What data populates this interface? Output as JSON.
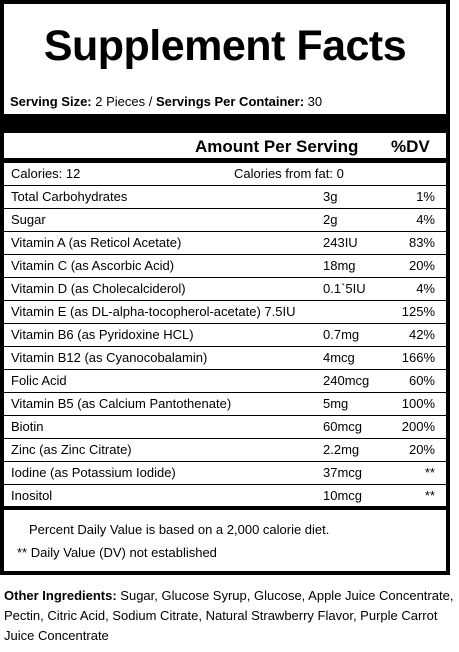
{
  "title": "Supplement Facts",
  "serving": {
    "size_label": "Serving Size:",
    "size_value": " 2 Pieces / ",
    "per_container_label": "Servings Per Container:",
    "per_container_value": " 30"
  },
  "header": {
    "amount": "Amount Per Serving",
    "dv": "%DV"
  },
  "calories": {
    "label": "Calories: 12",
    "from_fat": "Calories from fat: 0"
  },
  "nutrients": [
    {
      "name": "Total Carbohydrates",
      "amount": "3g",
      "dv": "1%"
    },
    {
      "name": "Sugar",
      "amount": "2g",
      "dv": "4%"
    },
    {
      "name": "Vitamin A (as Reticol Acetate)",
      "amount": "243IU",
      "dv": "83%"
    },
    {
      "name": "Vitamin C (as Ascorbic Acid)",
      "amount": "18mg",
      "dv": "20%"
    },
    {
      "name": "Vitamin D (as Cholecalciderol)",
      "amount": "0.1`5IU",
      "dv": "4%"
    },
    {
      "name": "Vitamin E (as DL-alpha-tocopherol-acetate) 7.5IU",
      "amount": "",
      "dv": "125%"
    },
    {
      "name": "Vitamin B6 (as Pyridoxine HCL)",
      "amount": "0.7mg",
      "dv": "42%"
    },
    {
      "name": "Vitamin B12 (as Cyanocobalamin)",
      "amount": "4mcg",
      "dv": "166%"
    },
    {
      "name": "Folic Acid",
      "amount": "240mcg",
      "dv": "60%"
    },
    {
      "name": "Vitamin B5 (as Calcium Pantothenate)",
      "amount": "5mg",
      "dv": "100%"
    },
    {
      "name": "Biotin",
      "amount": "60mcg",
      "dv": "200%"
    },
    {
      "name": "Zinc (as Zinc Citrate)",
      "amount": "2.2mg",
      "dv": "20%"
    },
    {
      "name": "Iodine (as Potassium Iodide)",
      "amount": "37mcg",
      "dv": "**"
    },
    {
      "name": "Inositol",
      "amount": "10mcg",
      "dv": "**"
    }
  ],
  "footnotes": {
    "percent": "Percent Daily Value is based on a 2,000 calorie diet.",
    "not_established": "** Daily Value (DV) not established"
  },
  "ingredients": {
    "label": "Other Ingredients:",
    "text": " Sugar, Glucose Syrup, Glucose, Apple Juice Concentrate, Pectin, Citric Acid, Sodium Citrate, Natural Strawberry Flavor, Purple Carrot Juice Concentrate"
  }
}
